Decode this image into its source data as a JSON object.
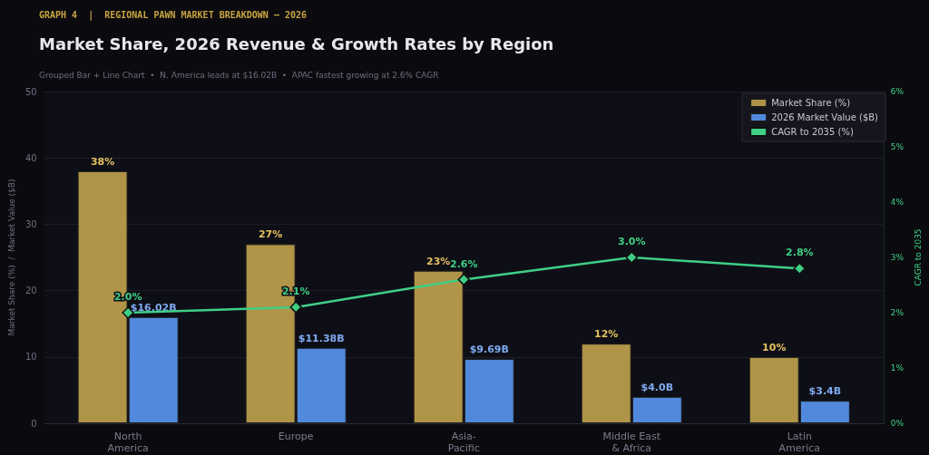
{
  "chart_data": {
    "type": "bar",
    "title": "Market Share, 2026 Revenue & Growth Rates by Region",
    "subtitle": "Grouped Bar + Line Chart  •  N. America leads at $16.02B  •  APAC fastest growing at 2.6% CAGR",
    "annotations": [
      "GRAPH 4  |  REGIONAL PAWN MARKET BREAKDOWN — 2026"
    ],
    "ylabel": "Market Share (%)  /  Market Value ($B)",
    "y2label": "CAGR to 2035",
    "categories": [
      "North\nAmerica",
      "Europe",
      "Asia-\nPacific",
      "Middle East\n& Africa",
      "Latin\nAmerica"
    ],
    "series": [
      {
        "name": "Market Share (%)",
        "color": "#b09448",
        "values": [
          38,
          27,
          23,
          12,
          10
        ],
        "value_labels": [
          "38%",
          "27%",
          "23%",
          "12%",
          "10%"
        ]
      },
      {
        "name": "2026 Market Value ($B)",
        "color": "#5189dc",
        "values": [
          16.02,
          11.38,
          9.69,
          4.0,
          3.4
        ],
        "value_labels": [
          "$16.02B",
          "$11.38B",
          "$9.69B",
          "$4.0B",
          "$3.4B"
        ]
      },
      {
        "name": "CAGR to 2035 (%)",
        "type": "line",
        "axis": "y2",
        "color": "#3ecf85",
        "values": [
          2.0,
          2.1,
          2.6,
          3.0,
          2.8
        ],
        "value_labels": [
          "2.0%",
          "2.1%",
          "2.6%",
          "3.0%",
          "2.8%"
        ],
        "marker": "diamond",
        "line_style": "solid"
      }
    ],
    "ylim": [
      0,
      50
    ],
    "yticks": [
      0,
      10,
      20,
      30,
      40,
      50
    ],
    "y2lim": [
      0,
      6
    ],
    "y2ticks": [
      {
        "value": 0,
        "label": "0%"
      },
      {
        "value": 1,
        "label": "1%"
      },
      {
        "value": 2,
        "label": "2%"
      },
      {
        "value": 3,
        "label": "3%"
      },
      {
        "value": 4,
        "label": "4%"
      },
      {
        "value": 5,
        "label": "5%"
      },
      {
        "value": 6,
        "label": "6%"
      }
    ],
    "grid": "y",
    "legend": "top right"
  }
}
